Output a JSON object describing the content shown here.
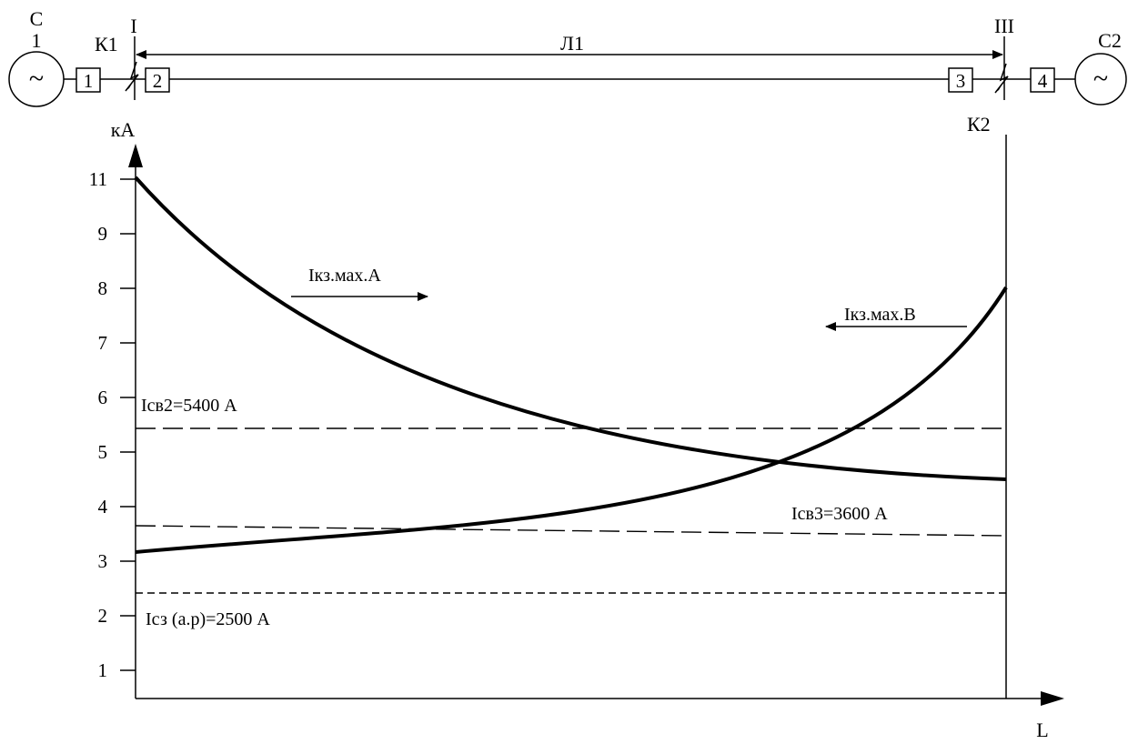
{
  "scheme": {
    "source_left": {
      "label_line1": "С",
      "label_line2": "1",
      "symbol": "~"
    },
    "source_right": {
      "label": "С2",
      "symbol": "~"
    },
    "breakers": [
      "1",
      "2",
      "3",
      "4"
    ],
    "line_label": "Л1",
    "section_left": "I",
    "section_right": "III",
    "fault_left": "К1",
    "fault_right": "К2"
  },
  "chart_data": {
    "type": "line",
    "ylabel": "кА",
    "xlabel": "L",
    "y_ticks": [
      "1",
      "2",
      "3",
      "4",
      "5",
      "6",
      "7",
      "8",
      "9",
      "11"
    ],
    "series": [
      {
        "name": "Iкз.мах.А",
        "direction": "right",
        "start_value": 11,
        "end_value": 4.5
      },
      {
        "name": "Iкз.мах.В",
        "direction": "left",
        "start_value": 3.15,
        "end_value": 8
      }
    ],
    "reference_lines": [
      {
        "label": "Iсв2=5400 А",
        "value": 5.4,
        "style": "long-dash"
      },
      {
        "label": "Iсв3=3600 А",
        "value": 3.6,
        "style": "long-dash"
      },
      {
        "label": "Iсз (а.р)=2500 А",
        "value": 2.5,
        "style": "short-dash"
      }
    ]
  }
}
